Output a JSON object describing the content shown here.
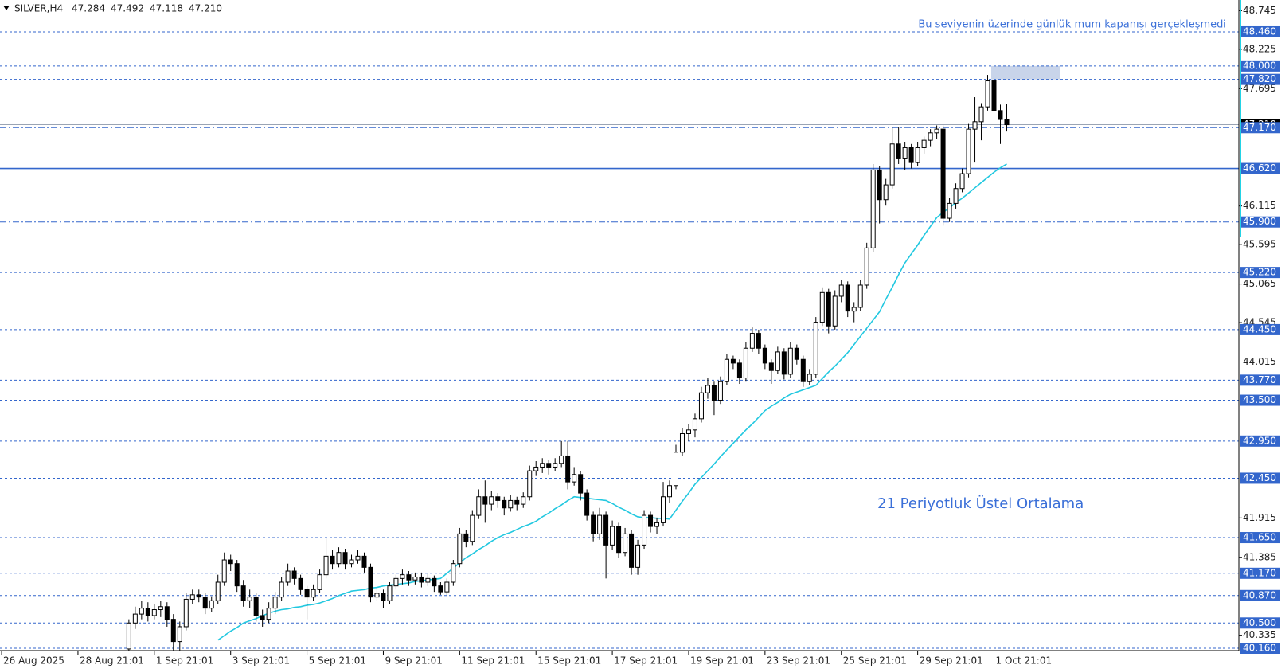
{
  "chart_data": {
    "type": "candlestick",
    "symbol": "SILVER,H4",
    "quote": [
      47.284,
      47.492,
      47.118,
      {
        "value": 47.21,
        "label": "47.210"
      }
    ],
    "annotations": [
      "Bu seviyenin üzerinde günlük mum kapanışı gerçekleşmedi",
      "21 Periyotluk Üstel Ortalama"
    ],
    "ylim": [
      40.16,
      48.745
    ],
    "yticks": [
      48.745,
      48.225,
      47.695,
      46.115,
      45.595,
      45.065,
      44.545,
      44.015,
      41.915,
      41.385,
      40.335
    ],
    "levels": [
      {
        "value": 48.46,
        "label": "48.460",
        "style": "dash"
      },
      {
        "value": 48.0,
        "label": "48.000",
        "style": "dash"
      },
      {
        "value": 47.82,
        "label": "47.820",
        "style": "dash"
      },
      {
        "value": 47.17,
        "label": "47.170",
        "style": "dashdot"
      },
      {
        "value": 46.62,
        "label": "46.620",
        "style": "solid"
      },
      {
        "value": 45.9,
        "label": "45.900",
        "style": "dashdot"
      },
      {
        "value": 45.22,
        "label": "45.220",
        "style": "dash"
      },
      {
        "value": 44.45,
        "label": "44.450",
        "style": "dash"
      },
      {
        "value": 43.77,
        "label": "43.770",
        "style": "dash"
      },
      {
        "value": 43.5,
        "label": "43.500",
        "style": "dash"
      },
      {
        "value": 42.95,
        "label": "42.950",
        "style": "dash"
      },
      {
        "value": 42.45,
        "label": "42.450",
        "style": "dash"
      },
      {
        "value": 41.65,
        "label": "41.650",
        "style": "dash"
      },
      {
        "value": 41.17,
        "label": "41.170",
        "style": "dash"
      },
      {
        "value": 40.87,
        "label": "40.870",
        "style": "dash"
      },
      {
        "value": 40.5,
        "label": "40.500",
        "style": "dash"
      },
      {
        "value": 40.16,
        "label": "40.160",
        "style": "dash"
      }
    ],
    "level_color": "#3366cc",
    "zone": [
      47.82,
      48.0
    ],
    "zone_color": "#c8d4ea",
    "categories": [
      "26 Aug 2025",
      null,
      null,
      null,
      null,
      null,
      null,
      null,
      null,
      null,
      null,
      null,
      "28 Aug 21:01",
      null,
      null,
      null,
      null,
      null,
      null,
      null,
      null,
      null,
      null,
      null,
      "1 Sep 21:01",
      null,
      null,
      null,
      null,
      null,
      null,
      null,
      null,
      null,
      null,
      null,
      "3 Sep 21:01",
      null,
      null,
      null,
      null,
      null,
      null,
      null,
      null,
      null,
      null,
      null,
      "5 Sep 21:01",
      null,
      null,
      null,
      null,
      null,
      null,
      null,
      null,
      null,
      null,
      null,
      "9 Sep 21:01",
      null,
      null,
      null,
      null,
      null,
      null,
      null,
      null,
      null,
      null,
      null,
      "11 Sep 21:01",
      null,
      null,
      null,
      null,
      null,
      null,
      null,
      null,
      null,
      null,
      null,
      "15 Sep 21:01",
      null,
      null,
      null,
      null,
      null,
      null,
      null,
      null,
      null,
      null,
      null,
      "17 Sep 21:01",
      null,
      null,
      null,
      null,
      null,
      null,
      null,
      null,
      null,
      null,
      null,
      "19 Sep 21:01",
      null,
      null,
      null,
      null,
      null,
      null,
      null,
      null,
      null,
      null,
      null,
      "23 Sep 21:01",
      null,
      null,
      null,
      null,
      null,
      null,
      null,
      null,
      null,
      null,
      null,
      "25 Sep 21:01",
      null,
      null,
      null,
      null,
      null,
      null,
      null,
      null,
      null,
      null,
      null,
      "29 Sep 21:01",
      null,
      null,
      null,
      null,
      null,
      null,
      null,
      null,
      null,
      null,
      null,
      "1 Oct 21:01",
      null,
      null
    ],
    "ohlc": [
      null,
      null,
      null,
      null,
      null,
      null,
      null,
      null,
      null,
      null,
      null,
      null,
      null,
      null,
      null,
      null,
      null,
      null,
      null,
      null,
      [
        40.15,
        40.55,
        40.05,
        40.5
      ],
      [
        40.5,
        40.72,
        40.42,
        40.62
      ],
      [
        40.62,
        40.8,
        40.55,
        40.7
      ],
      [
        40.7,
        40.78,
        40.52,
        40.6
      ],
      [
        40.6,
        40.76,
        40.55,
        40.68
      ],
      [
        40.68,
        40.8,
        40.58,
        40.72
      ],
      [
        40.72,
        40.78,
        40.45,
        40.55
      ],
      [
        40.55,
        40.62,
        40.1,
        40.25
      ],
      [
        40.25,
        40.52,
        40.12,
        40.45
      ],
      [
        40.45,
        40.9,
        40.4,
        40.82
      ],
      [
        40.82,
        40.95,
        40.75,
        40.88
      ],
      [
        40.88,
        40.95,
        40.78,
        40.85
      ],
      [
        40.85,
        40.9,
        40.62,
        40.7
      ],
      [
        40.7,
        40.86,
        40.65,
        40.8
      ],
      [
        40.8,
        41.15,
        40.75,
        41.05
      ],
      [
        41.05,
        41.45,
        41.0,
        41.35
      ],
      [
        41.35,
        41.42,
        41.2,
        41.3
      ],
      [
        41.3,
        41.35,
        40.92,
        41.0
      ],
      [
        41.0,
        41.08,
        40.72,
        40.8
      ],
      [
        40.8,
        40.95,
        40.7,
        40.85
      ],
      [
        40.85,
        40.9,
        40.52,
        40.6
      ],
      [
        40.6,
        40.68,
        40.45,
        40.55
      ],
      [
        40.55,
        40.78,
        40.5,
        40.7
      ],
      [
        40.7,
        40.92,
        40.62,
        40.85
      ],
      [
        40.85,
        41.12,
        40.8,
        41.05
      ],
      [
        41.05,
        41.3,
        41.0,
        41.2
      ],
      [
        41.2,
        41.25,
        41.02,
        41.1
      ],
      [
        41.1,
        41.15,
        40.88,
        40.95
      ],
      [
        40.95,
        41.0,
        40.55,
        40.85
      ],
      [
        40.85,
        41.02,
        40.8,
        40.95
      ],
      [
        40.95,
        41.22,
        40.9,
        41.15
      ],
      [
        41.15,
        41.65,
        41.1,
        41.4
      ],
      [
        41.4,
        41.48,
        41.22,
        41.3
      ],
      [
        41.3,
        41.52,
        41.25,
        41.45
      ],
      [
        41.45,
        41.5,
        41.22,
        41.3
      ],
      [
        41.3,
        41.42,
        41.25,
        41.35
      ],
      [
        41.35,
        41.48,
        41.3,
        41.4
      ],
      [
        41.4,
        41.45,
        41.18,
        41.25
      ],
      [
        41.25,
        41.3,
        40.78,
        40.85
      ],
      [
        40.85,
        40.98,
        40.8,
        40.9
      ],
      [
        40.9,
        40.95,
        40.7,
        40.8
      ],
      [
        40.8,
        41.05,
        40.75,
        41.0
      ],
      [
        41.0,
        41.15,
        40.95,
        41.1
      ],
      [
        41.1,
        41.22,
        41.02,
        41.15
      ],
      [
        41.15,
        41.2,
        41.0,
        41.08
      ],
      [
        41.08,
        41.18,
        41.02,
        41.12
      ],
      [
        41.12,
        41.18,
        40.98,
        41.05
      ],
      [
        41.05,
        41.16,
        41.0,
        41.1
      ],
      [
        41.1,
        41.14,
        40.92,
        41.0
      ],
      [
        41.0,
        41.05,
        40.88,
        40.92
      ],
      [
        40.92,
        41.1,
        40.88,
        41.05
      ],
      [
        41.05,
        41.35,
        41.0,
        41.3
      ],
      [
        41.3,
        41.78,
        41.25,
        41.7
      ],
      [
        41.7,
        41.75,
        41.52,
        41.6
      ],
      [
        41.6,
        42.02,
        41.55,
        41.95
      ],
      [
        41.95,
        42.3,
        41.9,
        42.2
      ],
      [
        42.2,
        42.42,
        41.85,
        42.1
      ],
      [
        42.1,
        42.28,
        42.02,
        42.2
      ],
      [
        42.2,
        42.25,
        42.05,
        42.15
      ],
      [
        42.15,
        42.2,
        41.95,
        42.05
      ],
      [
        42.05,
        42.22,
        42.0,
        42.15
      ],
      [
        42.15,
        42.2,
        42.02,
        42.1
      ],
      [
        42.1,
        42.26,
        42.05,
        42.2
      ],
      [
        42.2,
        42.62,
        42.15,
        42.55
      ],
      [
        42.55,
        42.68,
        42.48,
        42.6
      ],
      [
        42.6,
        42.72,
        42.52,
        42.65
      ],
      [
        42.65,
        42.7,
        42.5,
        42.6
      ],
      [
        42.6,
        42.72,
        42.55,
        42.65
      ],
      [
        42.65,
        42.95,
        42.6,
        42.75
      ],
      [
        42.75,
        42.95,
        42.3,
        42.4
      ],
      [
        42.4,
        42.6,
        42.35,
        42.5
      ],
      [
        42.5,
        42.55,
        42.15,
        42.25
      ],
      [
        42.25,
        42.3,
        41.88,
        41.95
      ],
      [
        41.95,
        42.0,
        41.6,
        41.7
      ],
      [
        41.7,
        42.05,
        41.62,
        41.95
      ],
      [
        41.95,
        42.0,
        41.1,
        41.55
      ],
      [
        41.55,
        41.88,
        41.48,
        41.8
      ],
      [
        41.8,
        41.85,
        41.38,
        41.45
      ],
      [
        41.45,
        41.78,
        41.4,
        41.7
      ],
      [
        41.7,
        41.75,
        41.15,
        41.25
      ],
      [
        41.25,
        41.62,
        41.15,
        41.55
      ],
      [
        41.55,
        42.02,
        41.5,
        41.95
      ],
      [
        41.95,
        42.0,
        41.72,
        41.8
      ],
      [
        41.8,
        41.92,
        41.7,
        41.85
      ],
      [
        41.85,
        42.4,
        41.8,
        42.2
      ],
      [
        42.2,
        42.42,
        42.12,
        42.35
      ],
      [
        42.35,
        42.9,
        42.3,
        42.8
      ],
      [
        42.8,
        43.12,
        42.75,
        43.05
      ],
      [
        43.05,
        43.18,
        42.95,
        43.1
      ],
      [
        43.1,
        43.32,
        43.0,
        43.25
      ],
      [
        43.25,
        43.68,
        43.2,
        43.6
      ],
      [
        43.6,
        43.8,
        43.52,
        43.7
      ],
      [
        43.7,
        43.75,
        43.3,
        43.5
      ],
      [
        43.5,
        43.82,
        43.45,
        43.75
      ],
      [
        43.75,
        44.12,
        43.7,
        44.05
      ],
      [
        44.05,
        44.1,
        43.92,
        44.0
      ],
      [
        44.0,
        44.05,
        43.72,
        43.8
      ],
      [
        43.8,
        44.28,
        43.75,
        44.2
      ],
      [
        44.2,
        44.48,
        44.15,
        44.4
      ],
      [
        44.4,
        44.45,
        44.12,
        44.2
      ],
      [
        44.2,
        44.25,
        43.92,
        44.0
      ],
      [
        44.0,
        44.05,
        43.72,
        43.9
      ],
      [
        43.9,
        44.22,
        43.85,
        44.15
      ],
      [
        44.15,
        44.2,
        43.78,
        43.85
      ],
      [
        43.85,
        44.28,
        43.8,
        44.2
      ],
      [
        44.2,
        44.25,
        43.98,
        44.05
      ],
      [
        44.05,
        44.1,
        43.68,
        43.75
      ],
      [
        43.75,
        43.92,
        43.7,
        43.85
      ],
      [
        43.85,
        44.62,
        43.8,
        44.55
      ],
      [
        44.55,
        45.02,
        44.5,
        44.95
      ],
      [
        44.95,
        45.0,
        44.4,
        44.5
      ],
      [
        44.5,
        44.98,
        44.45,
        44.9
      ],
      [
        44.9,
        45.12,
        44.82,
        45.05
      ],
      [
        45.05,
        45.1,
        44.62,
        44.7
      ],
      [
        44.7,
        44.82,
        44.55,
        44.75
      ],
      [
        44.75,
        45.12,
        44.7,
        45.05
      ],
      [
        45.05,
        45.62,
        45.0,
        45.55
      ],
      [
        45.55,
        46.68,
        45.5,
        46.6
      ],
      [
        46.6,
        46.65,
        45.88,
        46.2
      ],
      [
        46.2,
        46.48,
        46.12,
        46.4
      ],
      [
        46.4,
        47.18,
        46.35,
        46.95
      ],
      [
        46.95,
        47.18,
        46.68,
        46.75
      ],
      [
        46.75,
        46.98,
        46.6,
        46.9
      ],
      [
        46.9,
        46.95,
        46.62,
        46.7
      ],
      [
        46.7,
        46.98,
        46.65,
        46.9
      ],
      [
        46.9,
        47.05,
        46.82,
        47.0
      ],
      [
        47.0,
        47.15,
        46.92,
        47.1
      ],
      [
        47.1,
        47.2,
        47.02,
        47.15
      ],
      [
        47.15,
        47.2,
        45.85,
        45.95
      ],
      [
        45.95,
        46.22,
        45.9,
        46.15
      ],
      [
        46.15,
        46.42,
        46.08,
        46.35
      ],
      [
        46.35,
        46.62,
        46.3,
        46.55
      ],
      [
        46.55,
        47.22,
        46.5,
        47.15
      ],
      [
        47.15,
        47.58,
        46.7,
        47.25
      ],
      [
        47.25,
        47.5,
        47.0,
        47.45
      ],
      [
        47.45,
        47.88,
        47.4,
        47.8
      ],
      [
        47.8,
        47.85,
        47.3,
        47.4
      ],
      [
        47.4,
        47.48,
        46.95,
        47.28
      ],
      [
        47.284,
        47.492,
        47.118,
        47.21
      ]
    ],
    "ema": {
      "color": "#22c8e0",
      "values": [
        null,
        null,
        null,
        null,
        null,
        null,
        null,
        null,
        null,
        null,
        null,
        null,
        null,
        null,
        null,
        null,
        null,
        null,
        null,
        null,
        null,
        null,
        null,
        null,
        null,
        null,
        null,
        null,
        null,
        null,
        null,
        null,
        null,
        null,
        40.27,
        40.33,
        40.39,
        40.44,
        40.5,
        40.53,
        40.56,
        40.6,
        40.63,
        40.66,
        40.68,
        40.69,
        40.71,
        40.72,
        40.74,
        40.75,
        40.77,
        40.8,
        40.83,
        40.87,
        40.9,
        40.93,
        40.94,
        40.95,
        40.97,
        40.98,
        41.0,
        41.01,
        41.02,
        41.03,
        41.04,
        41.06,
        41.07,
        41.08,
        41.09,
        41.1,
        41.17,
        41.24,
        41.31,
        41.38,
        41.43,
        41.49,
        41.54,
        41.6,
        41.65,
        41.69,
        41.72,
        41.76,
        41.8,
        41.83,
        41.87,
        41.93,
        41.98,
        42.04,
        42.09,
        42.15,
        42.2,
        42.19,
        42.18,
        42.17,
        42.16,
        42.15,
        42.11,
        42.06,
        42.02,
        41.97,
        41.93,
        41.92,
        41.92,
        41.91,
        41.91,
        41.9,
        42.02,
        42.14,
        42.25,
        42.37,
        42.46,
        42.55,
        42.64,
        42.74,
        42.83,
        42.92,
        43.01,
        43.1,
        43.18,
        43.27,
        43.36,
        43.42,
        43.47,
        43.53,
        43.58,
        43.61,
        43.64,
        43.67,
        43.7,
        43.79,
        43.88,
        43.96,
        44.05,
        44.14,
        44.25,
        44.36,
        44.47,
        44.58,
        44.69,
        44.86,
        45.02,
        45.19,
        45.35,
        45.47,
        45.59,
        45.72,
        45.84,
        45.96,
        46.03,
        46.09,
        46.16,
        46.22,
        46.29,
        46.36,
        46.43,
        46.5,
        46.57,
        46.63,
        46.68
      ]
    }
  }
}
